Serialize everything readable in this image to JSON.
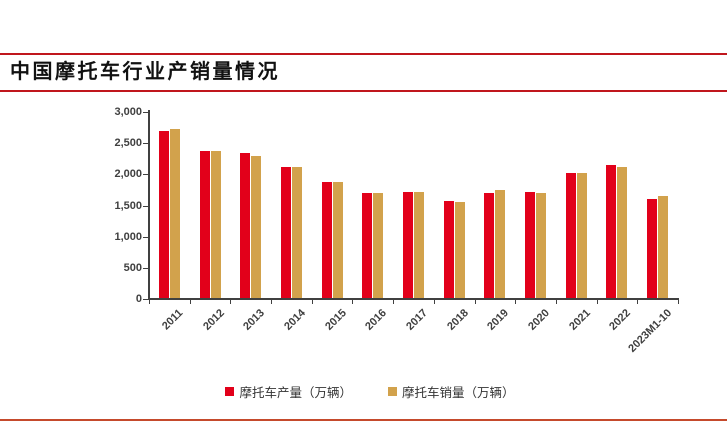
{
  "page_title": "中国摩托车行业产销量情况",
  "colors": {
    "header_rule": "#C0161D",
    "footer_rule": "#C54A2C",
    "axis": "#404040",
    "title_text": "#111111"
  },
  "chart_data": {
    "type": "bar",
    "title": "",
    "xlabel": "",
    "ylabel": "",
    "categories": [
      "2011",
      "2012",
      "2013",
      "2014",
      "2015",
      "2016",
      "2017",
      "2018",
      "2019",
      "2020",
      "2021",
      "2022",
      "2023M1-10"
    ],
    "series": [
      {
        "name": "摩托车产量（万辆）",
        "color": "#E2001A",
        "values": [
          2700,
          2375,
          2335,
          2125,
          1885,
          1700,
          1713,
          1565,
          1708,
          1710,
          2020,
          2155,
          1610
        ]
      },
      {
        "name": "摩托车销量（万辆）",
        "color": "#D2A24C",
        "values": [
          2720,
          2375,
          2300,
          2125,
          1885,
          1697,
          1710,
          1557,
          1755,
          1705,
          2019,
          2120,
          1645
        ]
      }
    ],
    "ylim": [
      0,
      3000
    ],
    "ytick_step": 500,
    "ytick_labels": [
      "0",
      "500",
      "1,000",
      "1,500",
      "2,000",
      "2,500",
      "3,000"
    ],
    "grid": false,
    "legend_position": "bottom"
  }
}
